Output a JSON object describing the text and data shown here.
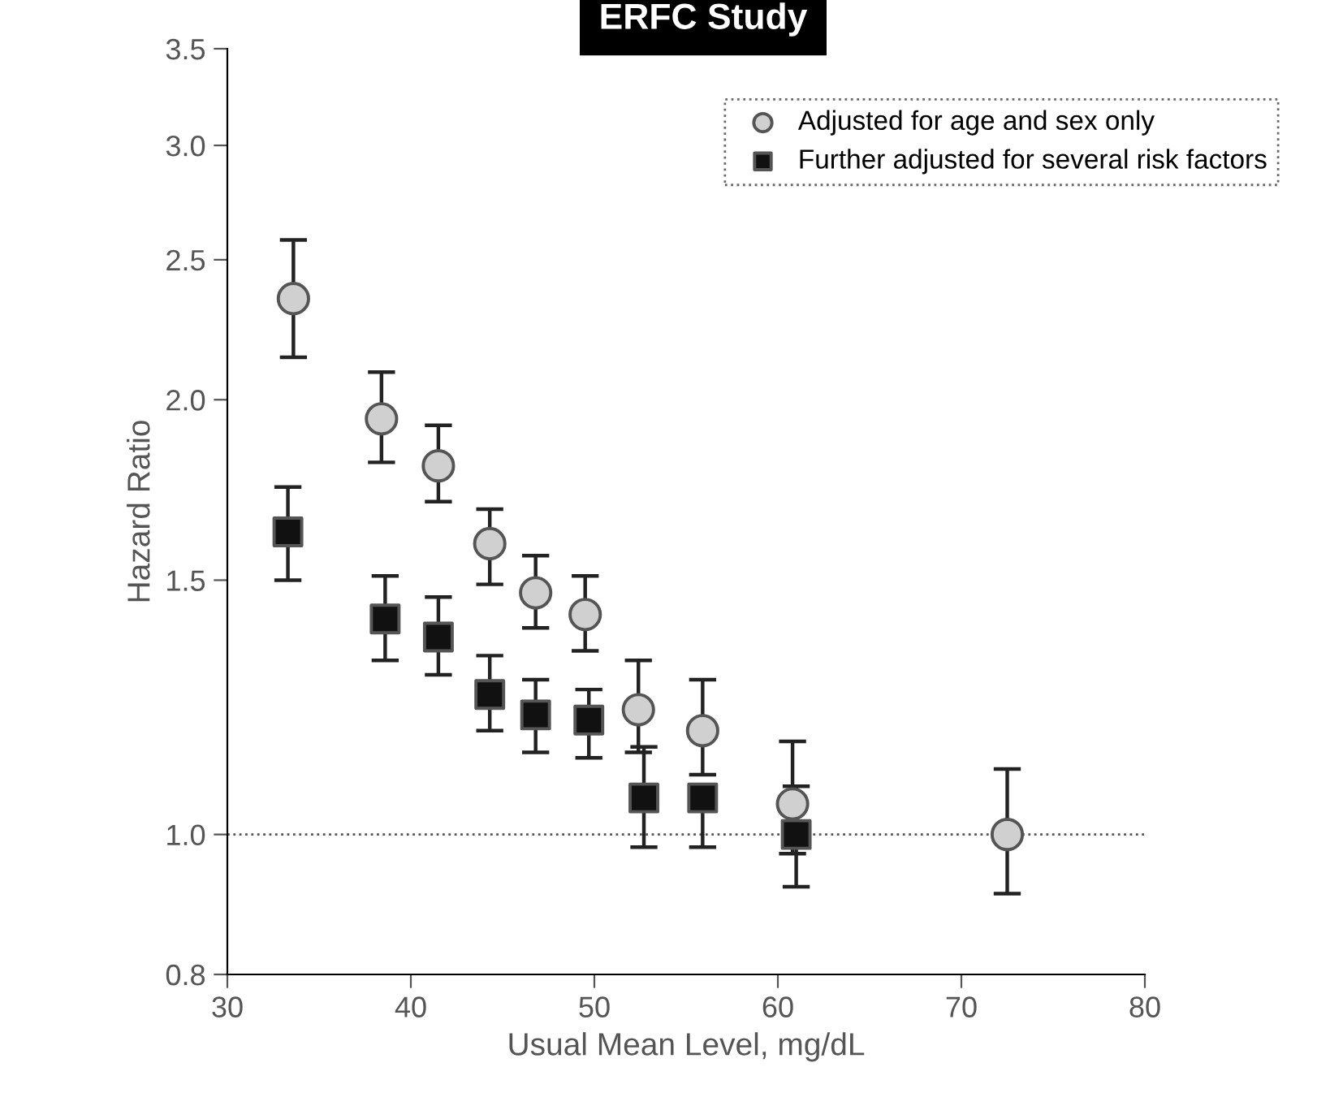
{
  "chart_data": {
    "type": "scatter",
    "title": "ERFC Study",
    "xlabel": "Usual Mean Level, mg/dL",
    "ylabel": "Hazard Ratio",
    "log": "y",
    "xlim": [
      30,
      80
    ],
    "xticks": [
      30,
      40,
      50,
      60,
      70,
      80
    ],
    "ylim": [
      0.8,
      3.5
    ],
    "yticks": [
      0.8,
      {
        "value": 1,
        "label": "1.0"
      },
      1.5,
      {
        "value": 2,
        "label": "2.0"
      },
      2.5,
      {
        "value": 3,
        "label": "3.0"
      },
      3.5
    ],
    "grid": false,
    "legend": "top right",
    "ref_lines": [
      {
        "axis": "y",
        "value": 1.0,
        "line_style": "dotted",
        "color": "#555555"
      }
    ],
    "series": [
      {
        "name": "Adjusted for age and sex only",
        "color": "#d0d0d0",
        "marker": "circle",
        "x": [
          33.6,
          38.4,
          41.5,
          44.3,
          46.8,
          49.5,
          52.4,
          55.9,
          60.8,
          72.5
        ],
        "values": [
          2.35,
          1.94,
          1.8,
          1.59,
          1.47,
          1.42,
          1.22,
          1.18,
          1.05,
          1.0
        ],
        "errors": [
          [
            2.14,
            2.58
          ],
          [
            1.81,
            2.09
          ],
          [
            1.7,
            1.92
          ],
          [
            1.49,
            1.68
          ],
          [
            1.39,
            1.56
          ],
          [
            1.34,
            1.51
          ],
          [
            1.14,
            1.32
          ],
          [
            1.1,
            1.28
          ],
          [
            0.97,
            1.16
          ],
          [
            0.91,
            1.11
          ]
        ]
      },
      {
        "name": "Further adjusted for several risk factors",
        "color": "#111111",
        "marker": "square",
        "x": [
          33.3,
          38.6,
          41.5,
          44.3,
          46.8,
          49.7,
          52.7,
          55.9,
          61.0
        ],
        "values": [
          1.62,
          1.41,
          1.37,
          1.25,
          1.21,
          1.2,
          1.06,
          1.06,
          1.0
        ],
        "errors": [
          [
            1.5,
            1.74
          ],
          [
            1.32,
            1.51
          ],
          [
            1.29,
            1.46
          ],
          [
            1.18,
            1.33
          ],
          [
            1.14,
            1.28
          ],
          [
            1.13,
            1.26
          ],
          [
            0.98,
            1.15
          ],
          [
            0.98,
            1.06
          ],
          [
            0.92,
            1.08
          ]
        ]
      }
    ]
  }
}
